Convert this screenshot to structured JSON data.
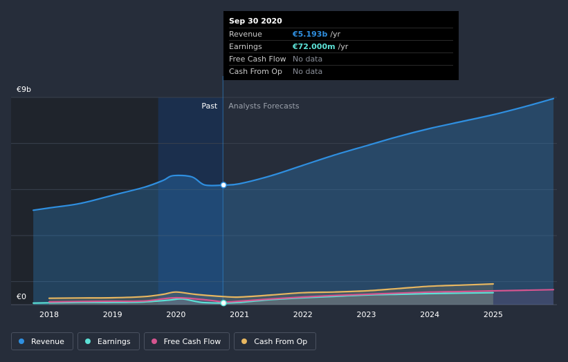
{
  "chart_data": {
    "type": "area",
    "y_axis": {
      "top_label": "€9b",
      "bottom_label": "€0",
      "ylim": [
        0,
        9
      ]
    },
    "x_ticks": [
      "2018",
      "2019",
      "2020",
      "2021",
      "2022",
      "2023",
      "2024",
      "2025"
    ],
    "regions": {
      "past_label": "Past",
      "forecast_label": "Analysts Forecasts"
    },
    "series": [
      {
        "name": "Revenue",
        "color": "#2f8fe0",
        "points": [
          [
            2017.75,
            4.1
          ],
          [
            2018.0,
            4.2
          ],
          [
            2018.5,
            4.4
          ],
          [
            2019.0,
            4.75
          ],
          [
            2019.5,
            5.1
          ],
          [
            2019.8,
            5.4
          ],
          [
            2019.95,
            5.6
          ],
          [
            2020.25,
            5.55
          ],
          [
            2020.45,
            5.2
          ],
          [
            2020.75,
            5.193
          ],
          [
            2021.0,
            5.25
          ],
          [
            2021.5,
            5.6
          ],
          [
            2022.0,
            6.05
          ],
          [
            2022.5,
            6.5
          ],
          [
            2023.0,
            6.9
          ],
          [
            2023.5,
            7.3
          ],
          [
            2024.0,
            7.65
          ],
          [
            2024.5,
            7.95
          ],
          [
            2025.0,
            8.25
          ],
          [
            2025.5,
            8.6
          ],
          [
            2025.95,
            8.95
          ]
        ]
      },
      {
        "name": "Earnings",
        "color": "#5ce1d6",
        "points": [
          [
            2017.75,
            0.07
          ],
          [
            2018.0,
            0.08
          ],
          [
            2018.5,
            0.1
          ],
          [
            2019.0,
            0.1
          ],
          [
            2019.5,
            0.12
          ],
          [
            2019.9,
            0.2
          ],
          [
            2020.1,
            0.25
          ],
          [
            2020.4,
            0.1
          ],
          [
            2020.75,
            0.072
          ],
          [
            2021.0,
            0.1
          ],
          [
            2021.5,
            0.22
          ],
          [
            2022.0,
            0.3
          ],
          [
            2022.5,
            0.36
          ],
          [
            2023.0,
            0.42
          ],
          [
            2023.5,
            0.45
          ],
          [
            2024.0,
            0.48
          ],
          [
            2024.5,
            0.5
          ],
          [
            2025.0,
            0.52
          ]
        ]
      },
      {
        "name": "Free Cash Flow",
        "color": "#d6558f",
        "points": [
          [
            2018.0,
            0.12
          ],
          [
            2018.5,
            0.14
          ],
          [
            2019.0,
            0.15
          ],
          [
            2019.5,
            0.16
          ],
          [
            2020.0,
            0.3
          ],
          [
            2020.5,
            0.2
          ],
          [
            2020.75,
            0.12
          ],
          [
            2021.0,
            0.15
          ],
          [
            2021.5,
            0.25
          ],
          [
            2022.0,
            0.33
          ],
          [
            2022.5,
            0.4
          ],
          [
            2023.0,
            0.45
          ],
          [
            2023.5,
            0.5
          ],
          [
            2024.0,
            0.55
          ],
          [
            2024.5,
            0.57
          ],
          [
            2025.0,
            0.6
          ],
          [
            2025.95,
            0.65
          ]
        ]
      },
      {
        "name": "Cash From Op",
        "color": "#e8b760",
        "points": [
          [
            2018.0,
            0.28
          ],
          [
            2018.5,
            0.29
          ],
          [
            2019.0,
            0.3
          ],
          [
            2019.5,
            0.35
          ],
          [
            2019.8,
            0.45
          ],
          [
            2020.0,
            0.55
          ],
          [
            2020.3,
            0.45
          ],
          [
            2020.75,
            0.35
          ],
          [
            2021.0,
            0.33
          ],
          [
            2021.5,
            0.42
          ],
          [
            2022.0,
            0.52
          ],
          [
            2022.5,
            0.55
          ],
          [
            2023.0,
            0.6
          ],
          [
            2023.5,
            0.7
          ],
          [
            2024.0,
            0.8
          ],
          [
            2024.5,
            0.85
          ],
          [
            2025.0,
            0.9
          ]
        ]
      }
    ]
  },
  "tooltip": {
    "date": "Sep 30 2020",
    "rows": [
      {
        "label": "Revenue",
        "value": "€5.193b",
        "unit": "/yr",
        "color": "#2f8fe0"
      },
      {
        "label": "Earnings",
        "value": "€72.000m",
        "unit": "/yr",
        "color": "#5ce1d6"
      },
      {
        "label": "Free Cash Flow",
        "value": "No data",
        "unit": ""
      },
      {
        "label": "Cash From Op",
        "value": "No data",
        "unit": ""
      }
    ]
  },
  "legend": [
    {
      "label": "Revenue",
      "color": "#2f8fe0"
    },
    {
      "label": "Earnings",
      "color": "#5ce1d6"
    },
    {
      "label": "Free Cash Flow",
      "color": "#d6558f"
    },
    {
      "label": "Cash From Op",
      "color": "#e8b760"
    }
  ]
}
